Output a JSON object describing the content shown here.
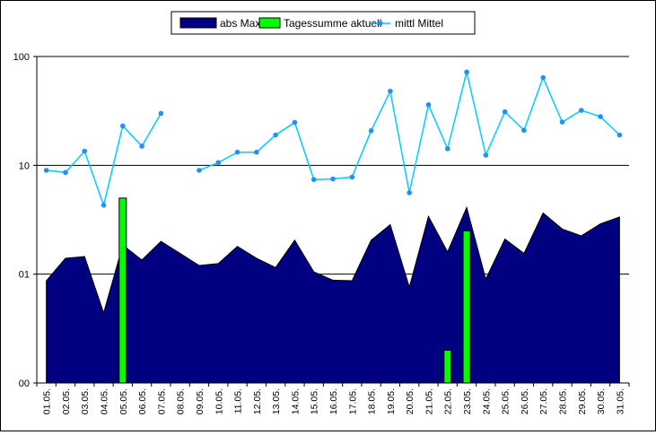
{
  "chart_data": {
    "type": "bar+area+line",
    "title": "",
    "xlabel": "",
    "ylabel": "",
    "y_scale": "log",
    "ylim": [
      0.1,
      100
    ],
    "y_ticks": [
      {
        "value": 0.1,
        "label": "00"
      },
      {
        "value": 1,
        "label": "01"
      },
      {
        "value": 10,
        "label": "10"
      },
      {
        "value": 100,
        "label": "100"
      }
    ],
    "grid": true,
    "legend_position": "top-center",
    "categories": [
      "01.05.",
      "02.05.",
      "03.05.",
      "04.05.",
      "05.05.",
      "06.05.",
      "07.05.",
      "08.05.",
      "09.05.",
      "10.05.",
      "11.05.",
      "12.05.",
      "13.05.",
      "14.05.",
      "15.05.",
      "16.05.",
      "17.05.",
      "18.05.",
      "19.05.",
      "20.05.",
      "21.05.",
      "22.05.",
      "23.05.",
      "24.05.",
      "25.05.",
      "26.05.",
      "27.05.",
      "28.05.",
      "29.05.",
      "30.05.",
      "31.05."
    ],
    "series": [
      {
        "name": "abs Max",
        "type": "area",
        "color": "#000080",
        "values": [
          0.87,
          1.4,
          1.45,
          0.44,
          1.85,
          1.35,
          2.0,
          1.55,
          1.2,
          1.25,
          1.8,
          1.4,
          1.15,
          2.05,
          1.05,
          0.88,
          0.87,
          2.05,
          2.85,
          0.76,
          3.4,
          1.6,
          4.1,
          0.9,
          2.1,
          1.55,
          3.65,
          2.6,
          2.25,
          2.9,
          3.35
        ]
      },
      {
        "name": "Tagessumme aktuell",
        "type": "bar",
        "color": "#00ff00",
        "values": [
          null,
          null,
          null,
          null,
          5.0,
          null,
          null,
          null,
          null,
          null,
          null,
          null,
          null,
          null,
          null,
          null,
          null,
          null,
          null,
          null,
          null,
          0.2,
          2.5,
          null,
          null,
          null,
          null,
          null,
          null,
          null,
          null
        ]
      },
      {
        "name": "mittl Mittel",
        "type": "line",
        "color": "#00ccff",
        "values": [
          9.0,
          8.6,
          13.5,
          4.3,
          23.0,
          15.0,
          30.0,
          null,
          9.0,
          10.6,
          13.2,
          13.2,
          19.0,
          24.8,
          7.4,
          7.5,
          7.8,
          20.8,
          48.0,
          5.6,
          36.0,
          14.2,
          72.0,
          12.4,
          31.0,
          21.0,
          64.0,
          25.0,
          32.0,
          28.0,
          19.0
        ]
      }
    ]
  }
}
